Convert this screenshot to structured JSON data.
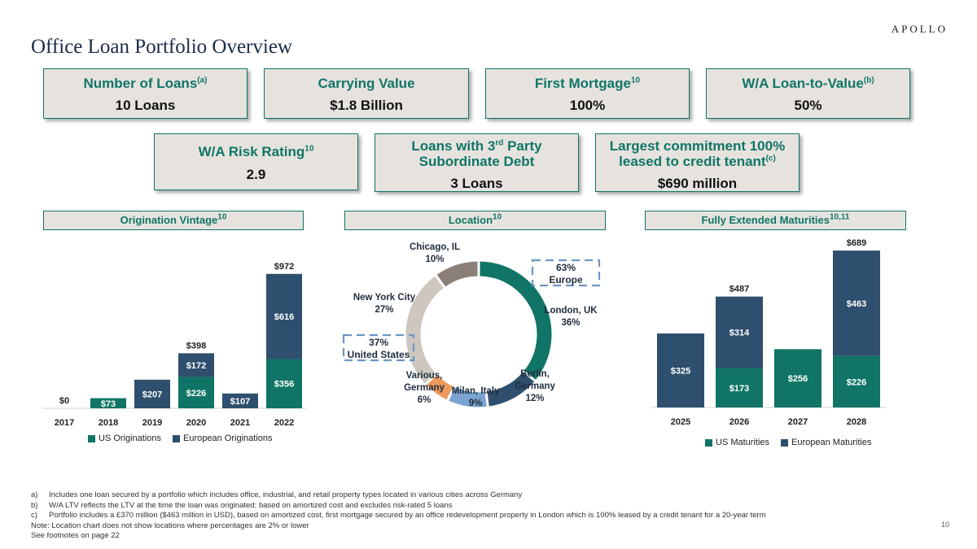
{
  "brand": "APOLLO",
  "title": "Office Loan Portfolio Overview",
  "kpis": [
    {
      "label": "Number of Loans",
      "sup": "(a)",
      "value": "10 Loans"
    },
    {
      "label": "Carrying Value",
      "sup": "",
      "value": "$1.8 Billion"
    },
    {
      "label": "First Mortgage",
      "sup": "10",
      "value": "100%"
    },
    {
      "label": "W/A Loan-to-Value",
      "sup": "(b)",
      "value": "50%"
    },
    {
      "label": "W/A Risk Rating",
      "sup": "10",
      "value": "2.9"
    },
    {
      "label_pre": "Loans with 3",
      "label_sup": "rd",
      "label_post": " Party",
      "label_line2": "Subordinate Debt",
      "value": "3 Loans"
    },
    {
      "label_line1": "Largest commitment 100%",
      "label_line2": "leased to credit tenant",
      "sup": "(c)",
      "value": "$690 million"
    }
  ],
  "sections": {
    "vintage": {
      "label": "Origination Vintage",
      "sup": "10"
    },
    "location": {
      "label": "Location",
      "sup": "10"
    },
    "maturities": {
      "label": "Fully Extended Maturities",
      "sup": "10,11"
    }
  },
  "colors": {
    "us": "#107566",
    "europe": "#2f4f6e"
  },
  "chart_data": [
    {
      "type": "bar",
      "stacked": true,
      "title": "Origination Vintage",
      "categories": [
        "2017",
        "2018",
        "2019",
        "2020",
        "2021",
        "2022"
      ],
      "series": [
        {
          "name": "US Originations",
          "values": [
            0,
            73,
            0,
            226,
            0,
            356
          ]
        },
        {
          "name": "European Originations",
          "values": [
            0,
            0,
            207,
            172,
            107,
            616
          ]
        }
      ],
      "totals": [
        0,
        null,
        null,
        398,
        null,
        972
      ],
      "data_labels": [
        [
          "$0",
          "$73",
          "",
          "$226",
          "",
          "$356"
        ],
        [
          "",
          "",
          "$207",
          "$172",
          "$107",
          "$616"
        ]
      ],
      "total_labels": [
        "$0",
        "",
        "",
        "$398",
        "",
        "$972"
      ],
      "legend": "bottom"
    },
    {
      "type": "pie",
      "donut": true,
      "title": "Location",
      "slices": [
        {
          "label": "London, UK",
          "value": 36,
          "color": "#107566"
        },
        {
          "label": "Berlin, Germany",
          "value": 12,
          "color": "#2f4f6e"
        },
        {
          "label": "Milan, Italy",
          "value": 9,
          "color": "#7ba3d1"
        },
        {
          "label": "Various, Germany",
          "value": 6,
          "color": "#ec9a5e"
        },
        {
          "label": "New York City",
          "value": 27,
          "color": "#cdc7c0"
        },
        {
          "label": "Chicago, IL",
          "value": 10,
          "color": "#8b8079"
        }
      ],
      "slice_labels": [
        {
          "name_lines": [
            "London, UK"
          ],
          "pct": "36%"
        },
        {
          "name_lines": [
            "Berlin,",
            "Germany"
          ],
          "pct": "12%"
        },
        {
          "name_lines": [
            "Milan, Italy"
          ],
          "pct": "9%"
        },
        {
          "name_lines": [
            "Various,",
            "Germany"
          ],
          "pct": "6%"
        },
        {
          "name_lines": [
            "New York City"
          ],
          "pct": "27%"
        },
        {
          "name_lines": [
            "Chicago, IL"
          ],
          "pct": "10%"
        }
      ],
      "callouts": [
        {
          "pct": "63%",
          "region": "Europe"
        },
        {
          "pct": "37%",
          "region": "United States"
        }
      ]
    },
    {
      "type": "bar",
      "stacked": true,
      "title": "Fully Extended Maturities",
      "categories": [
        "2025",
        "2026",
        "2027",
        "2028"
      ],
      "series": [
        {
          "name": "US Maturities",
          "values": [
            0,
            173,
            256,
            226
          ]
        },
        {
          "name": "European Maturities",
          "values": [
            325,
            314,
            0,
            463
          ]
        }
      ],
      "totals": [
        null,
        487,
        null,
        689
      ],
      "data_labels": [
        [
          "",
          "$173",
          "$256",
          "$226"
        ],
        [
          "$325",
          "$314",
          "",
          "$463"
        ]
      ],
      "total_labels": [
        "",
        "$487",
        "",
        "$689"
      ],
      "legend": "bottom"
    }
  ],
  "footnotes": [
    {
      "mark": "a)",
      "text": "Includes one loan secured by a portfolio which includes office, industrial, and retail property types located in various cities across Germany"
    },
    {
      "mark": "b)",
      "text": "W/A LTV reflects the LTV at the time the loan was originated; based on amortized cost and excludes risk-rated 5 loans"
    },
    {
      "mark": "c)",
      "text": "Portfolio includes a £370 million ($463 million in USD), based on amortized cost, first mortgage secured by an office redevelopment property in London which is 100% leased by a credit tenant for a 20-year term"
    }
  ],
  "notes": [
    "Note: Location chart does not show locations where percentages are 2% or lower",
    "See footnotes on page 22"
  ],
  "page_number": "10"
}
